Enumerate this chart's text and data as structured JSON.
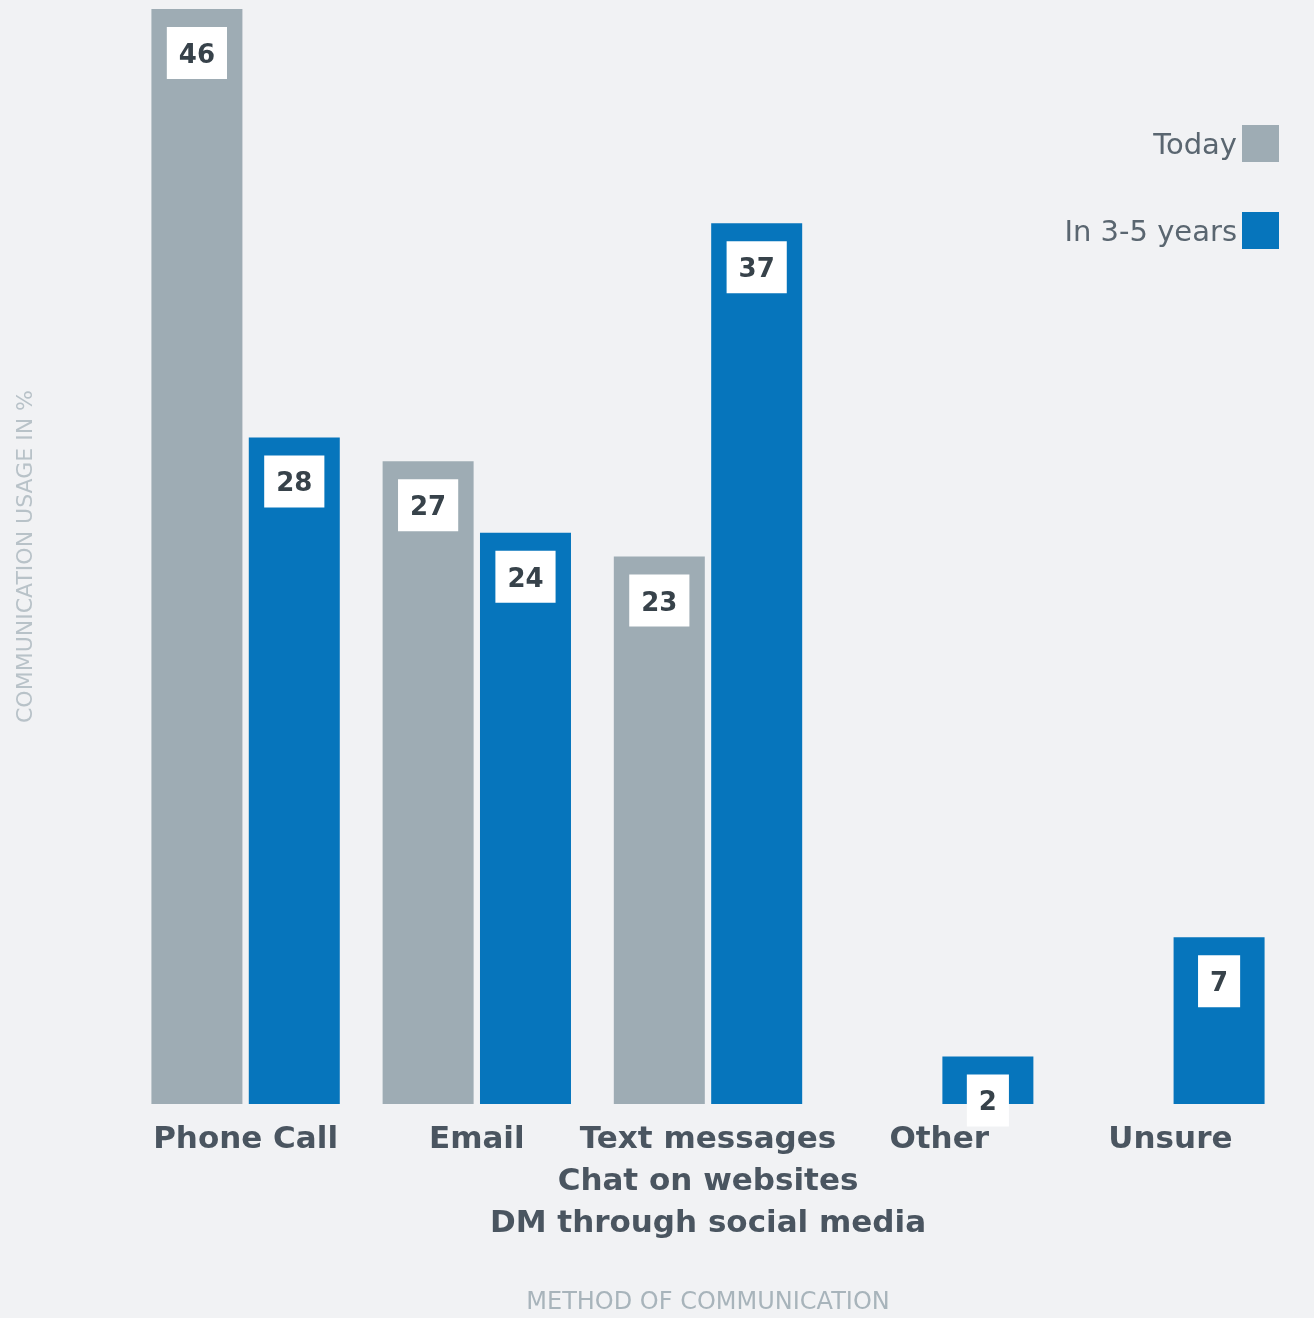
{
  "chart_data": {
    "type": "bar",
    "xlabel": "METHOD OF COMMUNICATION",
    "ylabel": "COMMUNICATION USAGE IN %",
    "categories": [
      "Phone Call",
      "Email",
      "Text messages\nChat on websites\nDM through social media",
      "Other",
      "Unsure"
    ],
    "series": [
      {
        "name": "Today",
        "color": "#9eacb4",
        "values": [
          46,
          27,
          23,
          null,
          null
        ]
      },
      {
        "name": "In 3-5 years",
        "color": "#0675bc",
        "values": [
          28,
          24,
          37,
          2,
          7
        ]
      }
    ],
    "ylim": [
      0,
      46
    ],
    "data_labels": true,
    "legend": "top right",
    "grid": false,
    "tick_labels": "x"
  }
}
